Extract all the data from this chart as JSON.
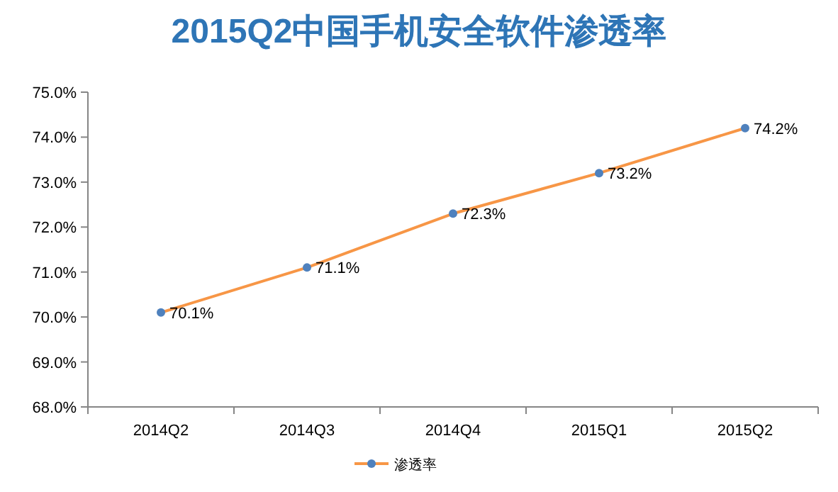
{
  "chart_data": {
    "type": "line",
    "title": "2015Q2中国手机安全软件渗透率",
    "categories": [
      "2014Q2",
      "2014Q3",
      "2014Q4",
      "2015Q1",
      "2015Q2"
    ],
    "series": [
      {
        "name": "渗透率",
        "color": "#f79646",
        "colors": [
          "#4f81bd",
          "#4f81bd",
          "#4f81bd",
          "#4f81bd",
          "#4f81bd"
        ],
        "values": [
          70.1,
          71.1,
          72.3,
          73.2,
          74.2
        ],
        "value_labels": [
          "70.1%",
          "71.1%",
          "72.3%",
          "73.2%",
          "74.2%"
        ]
      }
    ],
    "ylim": [
      68,
      75
    ],
    "yticks": [
      {
        "value": 68,
        "label": "68.0%"
      },
      {
        "value": 69,
        "label": "69.0%"
      },
      {
        "value": 70,
        "label": "70.0%"
      },
      {
        "value": 71,
        "label": "71.0%"
      },
      {
        "value": 72,
        "label": "72.0%"
      },
      {
        "value": 73,
        "label": "73.0%"
      },
      {
        "value": 74,
        "label": "74.0%"
      },
      {
        "value": 75,
        "label": "75.0%"
      }
    ],
    "marker": "circle",
    "line_style": "solid",
    "grid": false,
    "legend": "bottom"
  }
}
